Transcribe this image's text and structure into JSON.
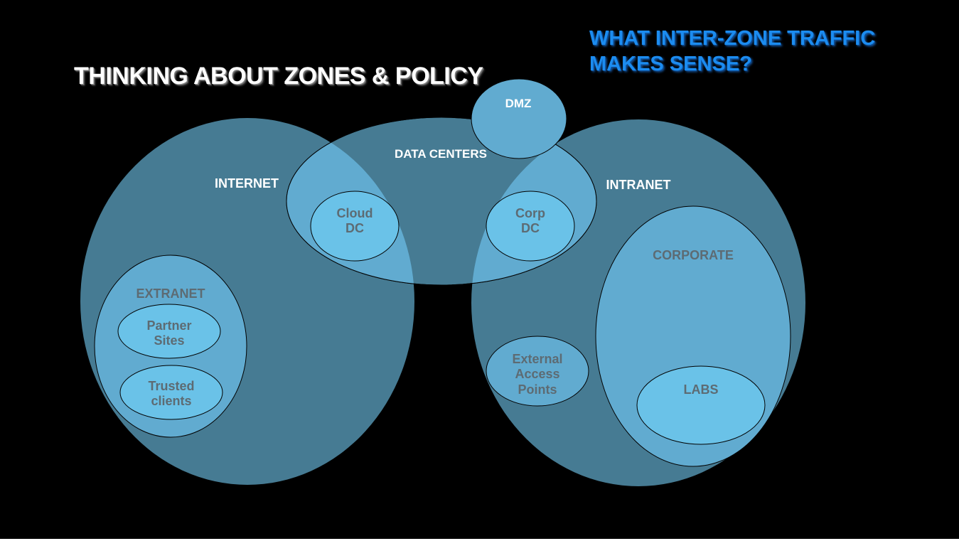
{
  "slide": {
    "title": "THINKING ABOUT ZONES & POLICY",
    "question_line1": "WHAT INTER-ZONE TRAFFIC",
    "question_line2": "MAKES SENSE?"
  },
  "zones": {
    "internet": "INTERNET",
    "intranet": "INTRANET",
    "data_centers": "DATA CENTERS",
    "dmz": "DMZ",
    "cloud_dc_line1": "Cloud",
    "cloud_dc_line2": "DC",
    "corp_dc_line1": "Corp",
    "corp_dc_line2": "DC",
    "extranet": "EXTRANET",
    "partner_sites_line1": "Partner",
    "partner_sites_line2": "Sites",
    "trusted_clients_line1": "Trusted",
    "trusted_clients_line2": "clients",
    "external_access_line1": "External",
    "external_access_line2": "Access",
    "external_access_line3": "Points",
    "corporate": "CORPORATE",
    "labs": "LABS"
  },
  "colors": {
    "background": "#000000",
    "outer_zone": "#467b93",
    "light_zone": "#61abd0",
    "inner_zone": "#6ac2e8",
    "label_light": "#ffffff",
    "label_dark": "#5d6b73",
    "question_text": "#1c8cf0"
  }
}
